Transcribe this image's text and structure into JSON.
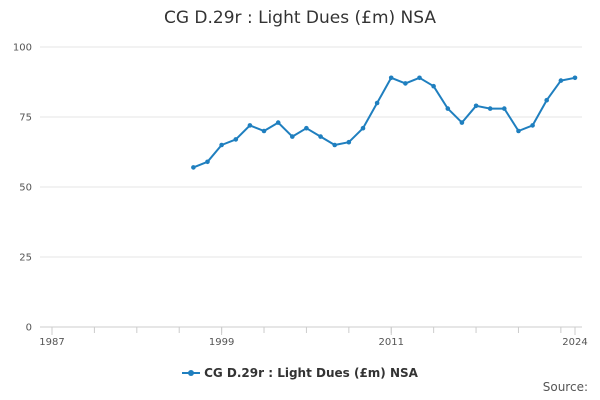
{
  "chart_data": {
    "type": "line",
    "title": "CG D.29r : Light Dues (£m) NSA",
    "xlabel": "",
    "ylabel": "",
    "x_ticks": [
      "1987",
      "1999",
      "2011",
      "2024"
    ],
    "x_range": [
      1987,
      2024
    ],
    "y_ticks": [
      "0",
      "25",
      "50",
      "75",
      "100"
    ],
    "ylim": [
      0,
      100
    ],
    "grid": "horizontal",
    "legend_position": "bottom",
    "series": [
      {
        "name": "CG D.29r : Light Dues (£m) NSA",
        "color": "#1f7fbf",
        "x": [
          1997,
          1998,
          1999,
          2000,
          2001,
          2002,
          2003,
          2004,
          2005,
          2006,
          2007,
          2008,
          2009,
          2010,
          2011,
          2012,
          2013,
          2014,
          2015,
          2016,
          2017,
          2018,
          2019,
          2020,
          2021,
          2022,
          2023,
          2024
        ],
        "values": [
          57,
          59,
          65,
          67,
          72,
          70,
          73,
          68,
          71,
          68,
          65,
          66,
          71,
          80,
          89,
          87,
          89,
          86,
          78,
          73,
          79,
          78,
          78,
          70,
          72,
          81,
          88,
          89
        ]
      }
    ]
  },
  "legend": {
    "label": "CG D.29r : Light Dues (£m) NSA"
  },
  "footer": {
    "source_label": "Source:"
  }
}
